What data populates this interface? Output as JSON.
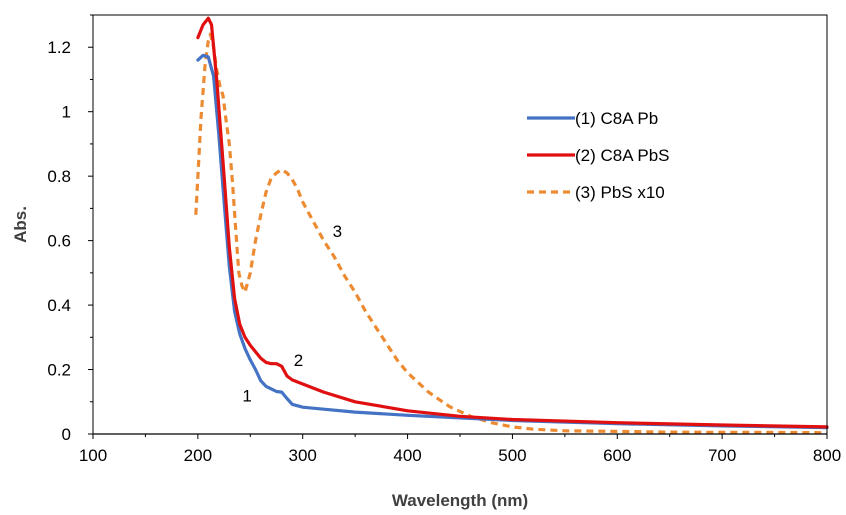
{
  "chart_data": {
    "type": "line",
    "title": "",
    "xlabel": "Wavelength (nm)",
    "ylabel": "Abs.",
    "xlim": [
      100,
      800
    ],
    "ylim": [
      0,
      1.3
    ],
    "x_ticks": [
      100,
      200,
      300,
      400,
      500,
      600,
      700,
      800
    ],
    "x_tick_labels": [
      "100",
      "200",
      "300",
      "400",
      "500",
      "600",
      "700",
      "800"
    ],
    "y_ticks": [
      0,
      0.2,
      0.4,
      0.6,
      0.8,
      1,
      1.2
    ],
    "y_tick_labels": [
      "0",
      "0.2",
      "0.4",
      "0.6",
      "0.8",
      "1",
      "1.2"
    ],
    "grid": false,
    "legend_position": "right",
    "series": [
      {
        "name": "(1) C8A Pb",
        "color": "#4472C4",
        "dash": "solid",
        "x": [
          200,
          205,
          210,
          215,
          220,
          225,
          230,
          235,
          240,
          245,
          250,
          255,
          260,
          265,
          270,
          275,
          280,
          285,
          290,
          300,
          320,
          350,
          400,
          450,
          500,
          600,
          700,
          800
        ],
        "y": [
          1.16,
          1.175,
          1.17,
          1.11,
          0.93,
          0.72,
          0.52,
          0.38,
          0.31,
          0.265,
          0.23,
          0.2,
          0.165,
          0.148,
          0.14,
          0.132,
          0.13,
          0.11,
          0.092,
          0.083,
          0.077,
          0.068,
          0.058,
          0.05,
          0.042,
          0.032,
          0.025,
          0.02
        ]
      },
      {
        "name": "(2) C8A PbS",
        "color": "#E01010",
        "dash": "solid",
        "x": [
          200,
          205,
          210,
          213,
          218,
          225,
          230,
          235,
          240,
          245,
          250,
          255,
          260,
          265,
          270,
          275,
          280,
          285,
          290,
          300,
          320,
          350,
          400,
          450,
          500,
          600,
          700,
          800
        ],
        "y": [
          1.23,
          1.27,
          1.29,
          1.27,
          1.1,
          0.8,
          0.58,
          0.42,
          0.34,
          0.3,
          0.275,
          0.255,
          0.235,
          0.222,
          0.218,
          0.218,
          0.21,
          0.18,
          0.168,
          0.155,
          0.13,
          0.1,
          0.072,
          0.055,
          0.045,
          0.035,
          0.028,
          0.022
        ]
      },
      {
        "name": "(3) PbS x10",
        "color": "#ED8B33",
        "dash": "dash",
        "x": [
          198,
          203,
          207,
          210,
          212,
          215,
          218,
          221,
          224,
          227,
          230,
          233,
          236,
          239,
          242,
          245,
          250,
          255,
          260,
          265,
          270,
          275,
          280,
          285,
          290,
          295,
          300,
          310,
          320,
          330,
          340,
          350,
          360,
          370,
          380,
          390,
          400,
          420,
          440,
          460,
          480,
          500,
          520,
          550,
          600,
          650,
          700,
          750,
          800
        ],
        "y": [
          0.68,
          0.98,
          1.15,
          1.22,
          1.24,
          1.2,
          1.13,
          1.08,
          1.05,
          0.97,
          0.9,
          0.78,
          0.64,
          0.5,
          0.46,
          0.44,
          0.5,
          0.6,
          0.68,
          0.75,
          0.795,
          0.81,
          0.82,
          0.81,
          0.79,
          0.76,
          0.72,
          0.66,
          0.6,
          0.55,
          0.49,
          0.44,
          0.38,
          0.33,
          0.28,
          0.23,
          0.19,
          0.13,
          0.085,
          0.055,
          0.035,
          0.022,
          0.015,
          0.01,
          0.008,
          0.006,
          0.005,
          0.005,
          0.004
        ]
      }
    ],
    "annotations": [
      {
        "text": "1",
        "x": 247,
        "y": 0.12
      },
      {
        "text": "2",
        "x": 296,
        "y": 0.23
      },
      {
        "text": "3",
        "x": 333,
        "y": 0.63
      }
    ]
  }
}
